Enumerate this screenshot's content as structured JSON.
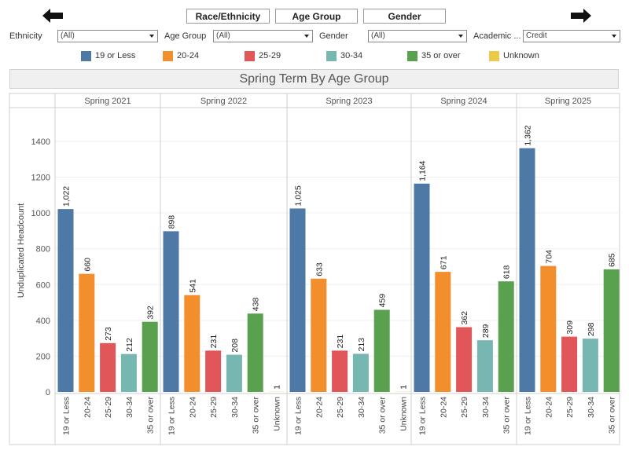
{
  "nav": {
    "back_icon": "arrow-left-icon",
    "forward_icon": "arrow-right-icon"
  },
  "tabs": [
    "Race/Ethnicity",
    "Age Group",
    "Gender"
  ],
  "filters": [
    {
      "label": "Ethnicity",
      "value": "(All)"
    },
    {
      "label": "Age Group",
      "value": "(All)"
    },
    {
      "label": "Gender",
      "value": "(All)"
    },
    {
      "label": "Academic ...",
      "value": "Credit"
    }
  ],
  "colors": {
    "19 or Less": "#4e79a7",
    "20-24": "#f28e2b",
    "25-29": "#e15759",
    "30-34": "#76b7b2",
    "35 or over": "#59a14f",
    "Unknown": "#edc948"
  },
  "legend": [
    "19 or Less",
    "20-24",
    "25-29",
    "30-34",
    "35 or over",
    "Unknown"
  ],
  "chart_data": {
    "type": "bar",
    "title": "Spring Term By Age Group",
    "ylabel": "Unduplicated Headcount",
    "xlabel": "",
    "ylim": [
      0,
      1500
    ],
    "yticks": [
      0,
      200,
      400,
      600,
      800,
      1000,
      1200,
      1400
    ],
    "panels": [
      {
        "term": "Spring 2021",
        "bars": [
          {
            "category": "19 or Less",
            "value": 1022,
            "label": "1,022"
          },
          {
            "category": "20-24",
            "value": 660,
            "label": "660"
          },
          {
            "category": "25-29",
            "value": 273,
            "label": "273"
          },
          {
            "category": "30-34",
            "value": 212,
            "label": "212"
          },
          {
            "category": "35 or over",
            "value": 392,
            "label": "392"
          }
        ]
      },
      {
        "term": "Spring 2022",
        "bars": [
          {
            "category": "19 or Less",
            "value": 898,
            "label": "898"
          },
          {
            "category": "20-24",
            "value": 541,
            "label": "541"
          },
          {
            "category": "25-29",
            "value": 231,
            "label": "231"
          },
          {
            "category": "30-34",
            "value": 208,
            "label": "208"
          },
          {
            "category": "35 or over",
            "value": 438,
            "label": "438"
          },
          {
            "category": "Unknown",
            "value": 1,
            "label": "1"
          }
        ]
      },
      {
        "term": "Spring 2023",
        "bars": [
          {
            "category": "19 or Less",
            "value": 1025,
            "label": "1,025"
          },
          {
            "category": "20-24",
            "value": 633,
            "label": "633"
          },
          {
            "category": "25-29",
            "value": 231,
            "label": "231"
          },
          {
            "category": "30-34",
            "value": 213,
            "label": "213"
          },
          {
            "category": "35 or over",
            "value": 459,
            "label": "459"
          },
          {
            "category": "Unknown",
            "value": 1,
            "label": "1"
          }
        ]
      },
      {
        "term": "Spring 2024",
        "bars": [
          {
            "category": "19 or Less",
            "value": 1164,
            "label": "1,164"
          },
          {
            "category": "20-24",
            "value": 671,
            "label": "671"
          },
          {
            "category": "25-29",
            "value": 362,
            "label": "362"
          },
          {
            "category": "30-34",
            "value": 289,
            "label": "289"
          },
          {
            "category": "35 or over",
            "value": 618,
            "label": "618"
          }
        ]
      },
      {
        "term": "Spring 2025",
        "bars": [
          {
            "category": "19 or Less",
            "value": 1362,
            "label": "1,362"
          },
          {
            "category": "20-24",
            "value": 704,
            "label": "704"
          },
          {
            "category": "25-29",
            "value": 309,
            "label": "309"
          },
          {
            "category": "30-34",
            "value": 298,
            "label": "298"
          },
          {
            "category": "35 or over",
            "value": 685,
            "label": "685"
          }
        ]
      }
    ]
  }
}
